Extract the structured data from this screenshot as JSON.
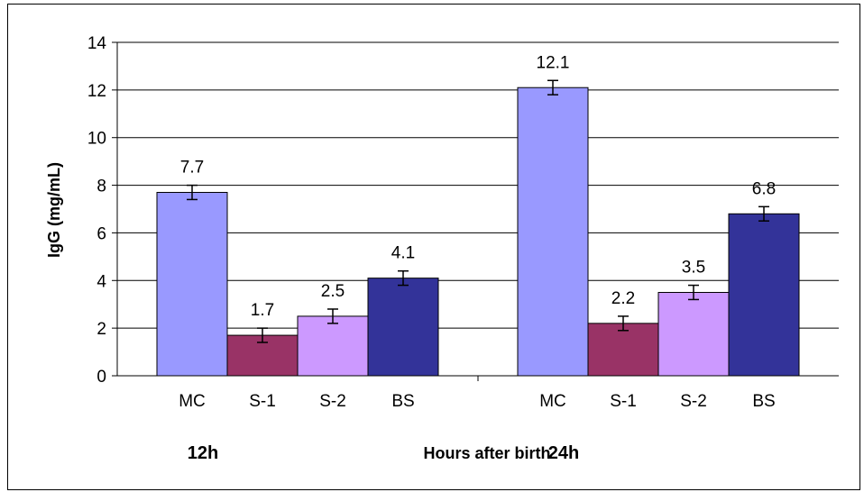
{
  "chart_data": {
    "type": "bar",
    "ylabel": "IgG (mg/mL)",
    "xlabel": "Hours after birth",
    "ylim": [
      0,
      14
    ],
    "yticks": [
      0,
      2,
      4,
      6,
      8,
      10,
      12,
      14
    ],
    "grid": true,
    "groups": [
      {
        "label": "12h",
        "bars": [
          {
            "category": "MC",
            "value": 7.7,
            "error": 0.3,
            "label": "7.7",
            "color": "#9999ff"
          },
          {
            "category": "S-1",
            "value": 1.7,
            "error": 0.3,
            "label": "1.7",
            "color": "#993366"
          },
          {
            "category": "S-2",
            "value": 2.5,
            "error": 0.3,
            "label": "2.5",
            "color": "#cc99ff"
          },
          {
            "category": "BS",
            "value": 4.1,
            "error": 0.3,
            "label": "4.1",
            "color": "#333399"
          }
        ]
      },
      {
        "label": "24h",
        "bars": [
          {
            "category": "MC",
            "value": 12.1,
            "error": 0.3,
            "label": "12.1",
            "color": "#9999ff"
          },
          {
            "category": "S-1",
            "value": 2.2,
            "error": 0.3,
            "label": "2.2",
            "color": "#993366"
          },
          {
            "category": "S-2",
            "value": 3.5,
            "error": 0.3,
            "label": "3.5",
            "color": "#cc99ff"
          },
          {
            "category": "BS",
            "value": 6.8,
            "error": 0.3,
            "label": "6.8",
            "color": "#333399"
          }
        ]
      }
    ]
  }
}
